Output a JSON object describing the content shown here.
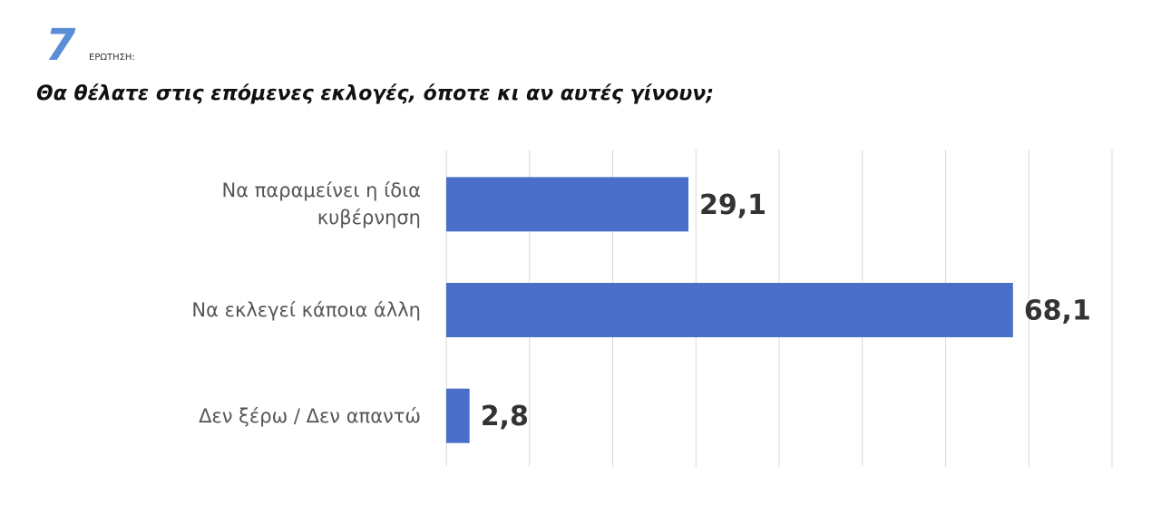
{
  "header": {
    "logo": "7",
    "label": "ΕΡΩΤΗΣΗ:"
  },
  "chart_data": {
    "type": "barh",
    "title": "Θα θέλατε στις επόμενες εκλογές, όποτε κι αν αυτές γίνουν;",
    "categories": [
      "Να παραμείνει η ίδια\nκυβέρνηση",
      "Να εκλεγεί κάποια άλλη",
      "Δεν ξέρω / Δεν απαντώ"
    ],
    "values": [
      29.1,
      68.1,
      2.8
    ],
    "value_labels": [
      "29,1",
      "68,1",
      "2,8"
    ],
    "color": "#4a6fc9",
    "xlim": [
      0,
      80
    ],
    "xticks": [
      0,
      10,
      20,
      30,
      40,
      50,
      60,
      70,
      80
    ],
    "grid": true
  }
}
